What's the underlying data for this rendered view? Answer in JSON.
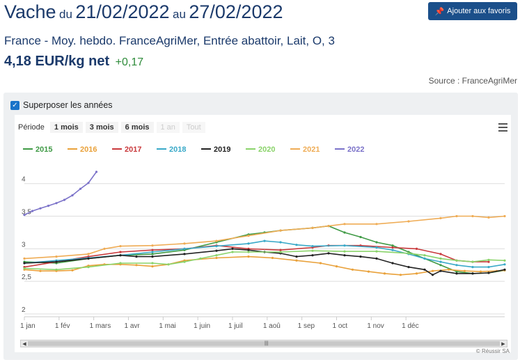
{
  "header": {
    "product": "Vache",
    "du_word": "du",
    "date_from": "21/02/2022",
    "au_word": "au",
    "date_to": "27/02/2022",
    "fav_label": "Ajouter aux favoris",
    "subtitle": "France - Moy. hebdo. FranceAgriMer, Entrée abattoir, Lait, O, 3",
    "price": "4,18 EUR/kg net",
    "change": "+0,17",
    "source": "Source : FranceAgriMer"
  },
  "controls": {
    "overlay_label": "Superposer les années",
    "overlay_checked": true,
    "period_label": "Période",
    "periods": [
      "1 mois",
      "3 mois",
      "6 mois",
      "1 an",
      "Tout"
    ],
    "credit": "© Réussir SA"
  },
  "colors": {
    "brand": "#1b4f8a",
    "positive": "#2e8b3a"
  },
  "chart_data": {
    "type": "line",
    "x_tick_labels": [
      "1 jan",
      "1 fév",
      "1 mars",
      "1 avr",
      "1 mai",
      "1 juin",
      "1 juil",
      "1 aoû",
      "1 sep",
      "1 oct",
      "1 nov",
      "1 déc"
    ],
    "y_tick_labels": [
      "2",
      "2,5",
      "3",
      "3,5",
      "4"
    ],
    "ylim": [
      2,
      4.2
    ],
    "x_unit": "week",
    "grid": true,
    "legend_position": "top",
    "series": [
      {
        "name": "2015",
        "color": "#3f9a45",
        "points": [
          [
            0,
            2.8
          ],
          [
            4,
            2.78
          ],
          [
            8,
            2.85
          ],
          [
            12,
            2.9
          ],
          [
            16,
            2.92
          ],
          [
            20,
            2.98
          ],
          [
            24,
            3.1
          ],
          [
            28,
            3.22
          ],
          [
            30,
            3.25
          ],
          [
            32,
            3.28
          ],
          [
            36,
            3.32
          ],
          [
            38,
            3.35
          ],
          [
            40,
            3.25
          ],
          [
            42,
            3.18
          ],
          [
            44,
            3.1
          ],
          [
            46,
            3.05
          ],
          [
            48,
            2.95
          ],
          [
            50,
            2.85
          ],
          [
            52,
            2.75
          ],
          [
            54,
            2.65
          ],
          [
            56,
            2.62
          ],
          [
            58,
            2.63
          ],
          [
            60,
            2.67
          ]
        ]
      },
      {
        "name": "2016",
        "color": "#e9a13a",
        "points": [
          [
            0,
            2.68
          ],
          [
            2,
            2.66
          ],
          [
            4,
            2.66
          ],
          [
            6,
            2.67
          ],
          [
            8,
            2.74
          ],
          [
            10,
            2.76
          ],
          [
            12,
            2.76
          ],
          [
            14,
            2.75
          ],
          [
            16,
            2.73
          ],
          [
            18,
            2.76
          ],
          [
            20,
            2.82
          ],
          [
            24,
            2.86
          ],
          [
            28,
            2.88
          ],
          [
            31,
            2.86
          ],
          [
            34,
            2.82
          ],
          [
            37,
            2.78
          ],
          [
            39,
            2.73
          ],
          [
            41,
            2.68
          ],
          [
            43,
            2.65
          ],
          [
            45,
            2.62
          ],
          [
            47,
            2.6
          ],
          [
            49,
            2.62
          ],
          [
            51,
            2.66
          ],
          [
            53,
            2.68
          ],
          [
            55,
            2.66
          ],
          [
            57,
            2.65
          ],
          [
            59,
            2.66
          ],
          [
            60,
            2.67
          ]
        ]
      },
      {
        "name": "2017",
        "color": "#c9393c",
        "points": [
          [
            0,
            2.72
          ],
          [
            4,
            2.8
          ],
          [
            8,
            2.88
          ],
          [
            12,
            2.95
          ],
          [
            16,
            2.98
          ],
          [
            20,
            3.0
          ],
          [
            24,
            3.05
          ],
          [
            28,
            3.0
          ],
          [
            32,
            2.98
          ],
          [
            36,
            3.02
          ],
          [
            38,
            3.05
          ],
          [
            42,
            3.05
          ],
          [
            46,
            3.02
          ],
          [
            49,
            3.0
          ],
          [
            52,
            2.92
          ],
          [
            54,
            2.82
          ],
          [
            56,
            2.8
          ],
          [
            58,
            2.8
          ]
        ]
      },
      {
        "name": "2018",
        "color": "#39a9c8",
        "points": [
          [
            0,
            2.78
          ],
          [
            4,
            2.82
          ],
          [
            8,
            2.86
          ],
          [
            12,
            2.9
          ],
          [
            16,
            2.95
          ],
          [
            20,
            3.0
          ],
          [
            24,
            3.04
          ],
          [
            28,
            3.08
          ],
          [
            30,
            3.12
          ],
          [
            32,
            3.1
          ],
          [
            34,
            3.06
          ],
          [
            36,
            3.04
          ],
          [
            40,
            3.05
          ],
          [
            44,
            3.02
          ],
          [
            46,
            2.98
          ],
          [
            48,
            2.92
          ],
          [
            50,
            2.85
          ],
          [
            52,
            2.8
          ],
          [
            54,
            2.75
          ],
          [
            56,
            2.72
          ],
          [
            58,
            2.72
          ],
          [
            60,
            2.76
          ]
        ]
      },
      {
        "name": "2019",
        "color": "#222222",
        "points": [
          [
            0,
            2.78
          ],
          [
            4,
            2.8
          ],
          [
            8,
            2.85
          ],
          [
            12,
            2.9
          ],
          [
            14,
            2.88
          ],
          [
            16,
            2.88
          ],
          [
            20,
            2.92
          ],
          [
            24,
            2.97
          ],
          [
            26,
            3.0
          ],
          [
            28,
            2.98
          ],
          [
            30,
            2.95
          ],
          [
            32,
            2.93
          ],
          [
            34,
            2.88
          ],
          [
            36,
            2.9
          ],
          [
            38,
            2.93
          ],
          [
            40,
            2.9
          ],
          [
            42,
            2.88
          ],
          [
            44,
            2.85
          ],
          [
            46,
            2.78
          ],
          [
            48,
            2.72
          ],
          [
            50,
            2.68
          ],
          [
            51,
            2.6
          ],
          [
            52,
            2.66
          ],
          [
            54,
            2.62
          ],
          [
            56,
            2.62
          ],
          [
            58,
            2.63
          ],
          [
            60,
            2.68
          ]
        ]
      },
      {
        "name": "2020",
        "color": "#8ad36a",
        "points": [
          [
            0,
            2.7
          ],
          [
            4,
            2.68
          ],
          [
            8,
            2.72
          ],
          [
            12,
            2.78
          ],
          [
            16,
            2.78
          ],
          [
            18,
            2.76
          ],
          [
            20,
            2.8
          ],
          [
            22,
            2.85
          ],
          [
            24,
            2.9
          ],
          [
            26,
            2.95
          ],
          [
            28,
            2.95
          ],
          [
            32,
            2.95
          ],
          [
            36,
            2.97
          ],
          [
            40,
            2.96
          ],
          [
            44,
            2.96
          ],
          [
            48,
            2.93
          ],
          [
            50,
            2.9
          ],
          [
            52,
            2.85
          ],
          [
            54,
            2.82
          ],
          [
            56,
            2.8
          ],
          [
            58,
            2.83
          ],
          [
            60,
            2.82
          ]
        ]
      },
      {
        "name": "2021",
        "color": "#efac55",
        "points": [
          [
            0,
            2.85
          ],
          [
            4,
            2.88
          ],
          [
            8,
            2.92
          ],
          [
            10,
            3.0
          ],
          [
            12,
            3.04
          ],
          [
            16,
            3.05
          ],
          [
            20,
            3.08
          ],
          [
            24,
            3.12
          ],
          [
            28,
            3.2
          ],
          [
            32,
            3.28
          ],
          [
            36,
            3.32
          ],
          [
            38,
            3.35
          ],
          [
            40,
            3.38
          ],
          [
            44,
            3.38
          ],
          [
            48,
            3.42
          ],
          [
            52,
            3.47
          ],
          [
            54,
            3.5
          ],
          [
            56,
            3.5
          ],
          [
            58,
            3.48
          ],
          [
            60,
            3.5
          ]
        ]
      },
      {
        "name": "2022",
        "color": "#7b72c9",
        "points": [
          [
            0,
            3.52
          ],
          [
            1,
            3.58
          ],
          [
            2,
            3.62
          ],
          [
            3,
            3.66
          ],
          [
            4,
            3.7
          ],
          [
            5,
            3.75
          ],
          [
            6,
            3.82
          ],
          [
            7,
            3.92
          ],
          [
            8,
            4.01
          ],
          [
            9,
            4.18
          ]
        ]
      }
    ]
  }
}
